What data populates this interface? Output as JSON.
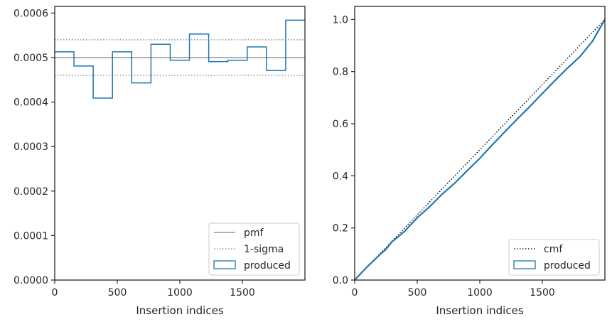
{
  "chart_data": [
    {
      "type": "histogram-step",
      "xlabel": "Insertion indices",
      "ylabel": "",
      "xlim": [
        0,
        2000
      ],
      "ylim": [
        0,
        0.000615
      ],
      "xticks": [
        0,
        500,
        1000,
        1500
      ],
      "xtick_labels": [
        "0",
        "500",
        "1000",
        "1500"
      ],
      "yticks": [
        0,
        0.0001,
        0.0002,
        0.0003,
        0.0004,
        0.0005,
        0.0006
      ],
      "ytick_labels": [
        "0.0000",
        "0.0001",
        "0.0002",
        "0.0003",
        "0.0004",
        "0.0005",
        "0.0006"
      ],
      "bin_edges": [
        0,
        153.8,
        307.7,
        461.5,
        615.4,
        769.2,
        923.1,
        1076.9,
        1230.8,
        1384.6,
        1538.5,
        1692.3,
        1846.2,
        2000
      ],
      "series": [
        {
          "name": "produced",
          "style": "step",
          "color": "#1f77b4",
          "values": [
            0.000513,
            0.000481,
            0.000409,
            0.000513,
            0.000443,
            0.00053,
            0.000494,
            0.000553,
            0.000491,
            0.000494,
            0.000524,
            0.000471,
            0.000584
          ]
        }
      ],
      "reference_lines": [
        {
          "name": "pmf",
          "y": 0.0005,
          "style": "solid",
          "color": "#808080"
        },
        {
          "name": "1-sigma",
          "y": 0.00054,
          "style": "dotted",
          "color": "#808080"
        },
        {
          "name": "",
          "y": 0.00046,
          "style": "dotted",
          "color": "#808080"
        }
      ],
      "legend": {
        "placement": "lower-right",
        "entries": [
          "pmf",
          "1-sigma",
          "produced"
        ]
      }
    },
    {
      "type": "line",
      "xlabel": "Insertion indices",
      "ylabel": "",
      "xlim": [
        0,
        2000
      ],
      "ylim": [
        0,
        1.05
      ],
      "xticks": [
        0,
        500,
        1000,
        1500
      ],
      "xtick_labels": [
        "0",
        "500",
        "1000",
        "1500"
      ],
      "yticks": [
        0,
        0.2,
        0.4,
        0.6,
        0.8,
        1.0
      ],
      "ytick_labels": [
        "0.0",
        "0.2",
        "0.4",
        "0.6",
        "0.8",
        "1.0"
      ],
      "series": [
        {
          "name": "cmf",
          "style": "dotted",
          "color": "#000000",
          "x": [
            0,
            2000
          ],
          "y": [
            0,
            1.0
          ]
        },
        {
          "name": "produced",
          "style": "step",
          "color": "#1f77b4",
          "x": [
            0,
            100,
            200,
            250,
            300,
            350,
            400,
            500,
            600,
            700,
            800,
            900,
            1000,
            1100,
            1200,
            1300,
            1400,
            1500,
            1600,
            1700,
            1800,
            1900,
            2000
          ],
          "y": [
            0,
            0.051,
            0.097,
            0.118,
            0.148,
            0.167,
            0.188,
            0.239,
            0.282,
            0.33,
            0.372,
            0.42,
            0.467,
            0.519,
            0.569,
            0.618,
            0.666,
            0.716,
            0.765,
            0.813,
            0.857,
            0.916,
            1.0
          ]
        }
      ],
      "legend": {
        "placement": "lower-right",
        "entries": [
          "cmf",
          "produced"
        ]
      }
    }
  ]
}
